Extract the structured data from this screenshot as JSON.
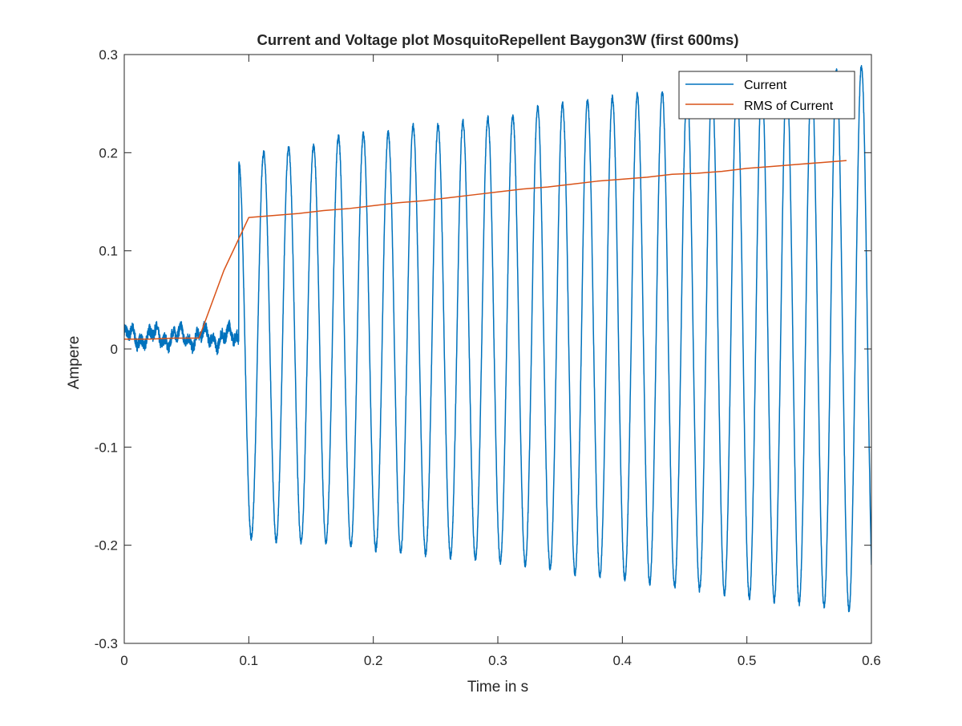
{
  "chart_data": {
    "type": "line",
    "title": "Current and Voltage plot MosquitoRepellent Baygon3W (first 600ms)",
    "xlabel": "Time in s",
    "ylabel": "Ampere",
    "xlim": [
      0,
      0.6
    ],
    "ylim": [
      -0.3,
      0.3
    ],
    "xticks": [
      0,
      0.1,
      0.2,
      0.3,
      0.4,
      0.5,
      0.6
    ],
    "yticks": [
      -0.3,
      -0.2,
      -0.1,
      0,
      0.1,
      0.2,
      0.3
    ],
    "xtick_labels": [
      "0",
      "0.1",
      "0.2",
      "0.3",
      "0.4",
      "0.5",
      "0.6"
    ],
    "ytick_labels": [
      "-0.3",
      "-0.2",
      "-0.1",
      "0",
      "0.1",
      "0.2",
      "0.3"
    ],
    "grid": false,
    "legend": {
      "position": "top-right",
      "entries": [
        "Current",
        "RMS of Current"
      ]
    },
    "colors": {
      "Current": "#0072BD",
      "RMS of Current": "#D95319"
    },
    "series": [
      {
        "name": "Current",
        "frequency_hz": 50,
        "idle_level": 0.012,
        "idle_noise_amplitude": 0.012,
        "switch_on_time": 0.092,
        "waveform": "sinusoid",
        "cycle_peaks": [
          {
            "t": 0.092,
            "max": 0.19,
            "min": -0.19
          },
          {
            "t": 0.112,
            "max": 0.2,
            "min": -0.194
          },
          {
            "t": 0.132,
            "max": 0.205,
            "min": -0.196
          },
          {
            "t": 0.152,
            "max": 0.207,
            "min": -0.196
          },
          {
            "t": 0.172,
            "max": 0.216,
            "min": -0.198
          },
          {
            "t": 0.192,
            "max": 0.219,
            "min": -0.203
          },
          {
            "t": 0.212,
            "max": 0.22,
            "min": -0.206
          },
          {
            "t": 0.232,
            "max": 0.227,
            "min": -0.208
          },
          {
            "t": 0.252,
            "max": 0.228,
            "min": -0.21
          },
          {
            "t": 0.272,
            "max": 0.232,
            "min": -0.213
          },
          {
            "t": 0.292,
            "max": 0.235,
            "min": -0.215
          },
          {
            "t": 0.312,
            "max": 0.237,
            "min": -0.219
          },
          {
            "t": 0.332,
            "max": 0.247,
            "min": -0.22
          },
          {
            "t": 0.352,
            "max": 0.25,
            "min": -0.228
          },
          {
            "t": 0.372,
            "max": 0.253,
            "min": -0.23
          },
          {
            "t": 0.392,
            "max": 0.256,
            "min": -0.233
          },
          {
            "t": 0.412,
            "max": 0.259,
            "min": -0.236
          },
          {
            "t": 0.432,
            "max": 0.262,
            "min": -0.241
          },
          {
            "t": 0.452,
            "max": 0.265,
            "min": -0.243
          },
          {
            "t": 0.472,
            "max": 0.268,
            "min": -0.247
          },
          {
            "t": 0.492,
            "max": 0.27,
            "min": -0.252
          },
          {
            "t": 0.512,
            "max": 0.273,
            "min": -0.255
          },
          {
            "t": 0.532,
            "max": 0.276,
            "min": -0.258
          },
          {
            "t": 0.552,
            "max": 0.279,
            "min": -0.261
          },
          {
            "t": 0.572,
            "max": 0.283,
            "min": -0.264
          },
          {
            "t": 0.592,
            "max": 0.288,
            "min": -0.268
          }
        ],
        "end_value": -0.22
      },
      {
        "name": "RMS of Current",
        "x": [
          0,
          0.02,
          0.04,
          0.06,
          0.08,
          0.1,
          0.12,
          0.14,
          0.16,
          0.18,
          0.2,
          0.22,
          0.24,
          0.26,
          0.28,
          0.3,
          0.32,
          0.34,
          0.36,
          0.38,
          0.4,
          0.42,
          0.44,
          0.46,
          0.48,
          0.5,
          0.52,
          0.54,
          0.56,
          0.58
        ],
        "y": [
          0.01,
          0.01,
          0.011,
          0.011,
          0.08,
          0.134,
          0.136,
          0.138,
          0.141,
          0.143,
          0.146,
          0.149,
          0.151,
          0.154,
          0.157,
          0.16,
          0.163,
          0.165,
          0.168,
          0.171,
          0.173,
          0.175,
          0.178,
          0.179,
          0.181,
          0.184,
          0.186,
          0.188,
          0.19,
          0.192
        ]
      }
    ]
  }
}
